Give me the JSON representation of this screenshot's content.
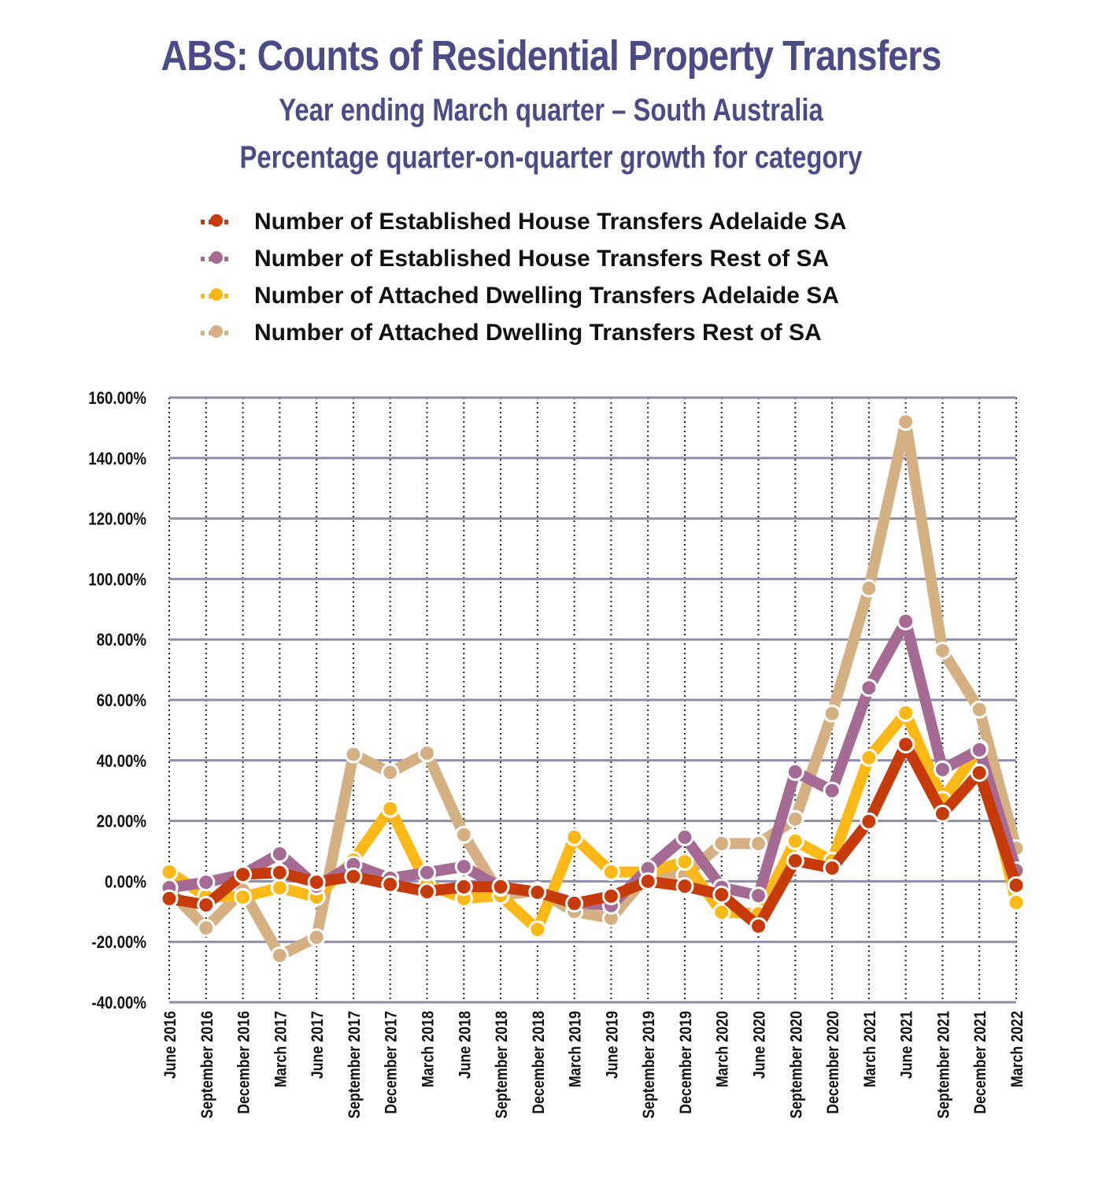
{
  "chart_data": {
    "type": "line",
    "title": "ABS: Counts of Residential Property Transfers",
    "subtitle": "Year ending March quarter – South Australia",
    "subtitle2": "Percentage quarter-on-quarter growth for category",
    "xlabel": "",
    "ylabel": "",
    "ylim": [
      -40,
      160
    ],
    "yticks": [
      -40,
      -20,
      0,
      20,
      40,
      60,
      80,
      100,
      120,
      140,
      160
    ],
    "ytick_labels": [
      "-40.00%",
      "-20.00%",
      "0.00%",
      "20.00%",
      "40.00%",
      "60.00%",
      "80.00%",
      "100.00%",
      "120.00%",
      "140.00%",
      "160.00%"
    ],
    "grid": true,
    "legend_position": "top",
    "categories": [
      "June 2016",
      "September 2016",
      "December 2016",
      "March 2017",
      "June 2017",
      "September 2017",
      "December 2017",
      "March 2018",
      "June 2018",
      "September 2018",
      "December 2018",
      "March 2019",
      "June 2019",
      "September 2019",
      "December 2019",
      "March 2020",
      "June 2020",
      "September 2020",
      "December 2020",
      "March 2021",
      "June 2021",
      "September 2021",
      "December 2021",
      "March 2022"
    ],
    "series": [
      {
        "name": "Number of Attached Dwelling Transfers Rest of SA",
        "color": "#d5b083",
        "values": [
          -3,
          -15.4,
          -3,
          -24.5,
          -18.5,
          42,
          36,
          42.4,
          15.4,
          -4.7,
          -3,
          -10,
          -12.2,
          2.3,
          2,
          12.5,
          12.5,
          20.6,
          55.5,
          96.9,
          152,
          76.3,
          56.8,
          10.9
        ]
      },
      {
        "name": "Number of Attached Dwelling Transfers Adelaide SA",
        "color": "#fbb817",
        "values": [
          3.1,
          -5,
          -5.2,
          -2.1,
          -5.2,
          7,
          24,
          -1,
          -5.7,
          -4.7,
          -15.9,
          14.6,
          3.1,
          3.1,
          6.5,
          -10.2,
          -10.7,
          13.3,
          6.8,
          40.9,
          55.7,
          27,
          44,
          -7
        ]
      },
      {
        "name": "Number of Established House Transfers Rest of SA",
        "color": "#a66b95",
        "values": [
          -2.1,
          -0.3,
          2.3,
          9.1,
          -1.6,
          5.5,
          1,
          2.9,
          4.9,
          -2.1,
          -3.6,
          -7,
          -8,
          4.2,
          14.6,
          -2,
          -4.7,
          36.2,
          30,
          64,
          86,
          37,
          43.5,
          3.6
        ]
      },
      {
        "name": "Number of Established House Transfers Adelaide SA",
        "color": "#c73b0b",
        "values": [
          -5.7,
          -7.8,
          2.3,
          2.9,
          -0.3,
          1.6,
          -1,
          -3.4,
          -1.8,
          -1.8,
          -3.6,
          -7.3,
          -4.9,
          0,
          -1.6,
          -4.4,
          -14.8,
          6.8,
          4.4,
          19.8,
          45.3,
          22.4,
          35.9,
          -1.3
        ]
      }
    ],
    "legend_order": [
      3,
      2,
      1,
      0
    ]
  }
}
